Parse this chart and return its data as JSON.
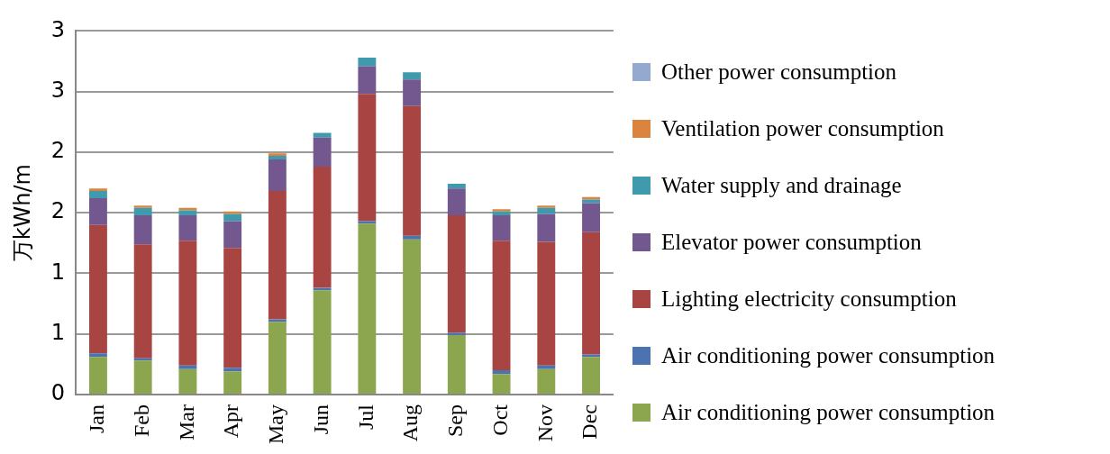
{
  "chart_data": {
    "type": "bar",
    "stacked": true,
    "ylabel": "万kWh/m",
    "categories": [
      "Jan",
      "Feb",
      "Mar",
      "Apr",
      "May",
      "Jun",
      "Jul",
      "Aug",
      "Sep",
      "Oct",
      "Nov",
      "Dec"
    ],
    "series": [
      {
        "name": "Air conditioning power consumption",
        "color": "#8ba64e",
        "values": [
          0.31,
          0.28,
          0.21,
          0.19,
          0.6,
          0.86,
          1.41,
          1.28,
          0.49,
          0.17,
          0.21,
          0.31
        ]
      },
      {
        "name": "Air conditioning power consumption",
        "color": "#4a73b0",
        "values": [
          0.03,
          0.02,
          0.03,
          0.03,
          0.02,
          0.02,
          0.02,
          0.03,
          0.02,
          0.03,
          0.03,
          0.02
        ]
      },
      {
        "name": "Lighting electricity consumption",
        "color": "#a84543",
        "values": [
          1.06,
          0.94,
          1.03,
          0.99,
          1.06,
          1.0,
          1.05,
          1.07,
          0.97,
          1.07,
          1.02,
          1.01
        ]
      },
      {
        "name": "Elevator power consumption",
        "color": "#73578f",
        "values": [
          0.22,
          0.24,
          0.21,
          0.22,
          0.26,
          0.24,
          0.23,
          0.22,
          0.22,
          0.21,
          0.23,
          0.24
        ]
      },
      {
        "name": "Water supply and drainage",
        "color": "#3f9aae",
        "values": [
          0.06,
          0.06,
          0.04,
          0.06,
          0.03,
          0.04,
          0.07,
          0.06,
          0.04,
          0.03,
          0.05,
          0.03
        ]
      },
      {
        "name": "Ventilation power consumption",
        "color": "#db843d",
        "values": [
          0.02,
          0.02,
          0.02,
          0.02,
          0.02,
          0,
          0,
          0,
          0,
          0.02,
          0.02,
          0.02
        ]
      },
      {
        "name": "Other power consumption",
        "color": "#93a9d0",
        "values": [
          0,
          0,
          0,
          0,
          0,
          0,
          0,
          0,
          0,
          0,
          0,
          0
        ]
      }
    ],
    "ylim": [
      0,
      3
    ],
    "yticks": [
      0,
      {
        "value": 0.5,
        "label": "1"
      },
      1,
      {
        "value": 1.5,
        "label": "2"
      },
      2,
      {
        "value": 2.5,
        "label": "3"
      },
      3
    ],
    "grid": "y",
    "legend": "right"
  }
}
